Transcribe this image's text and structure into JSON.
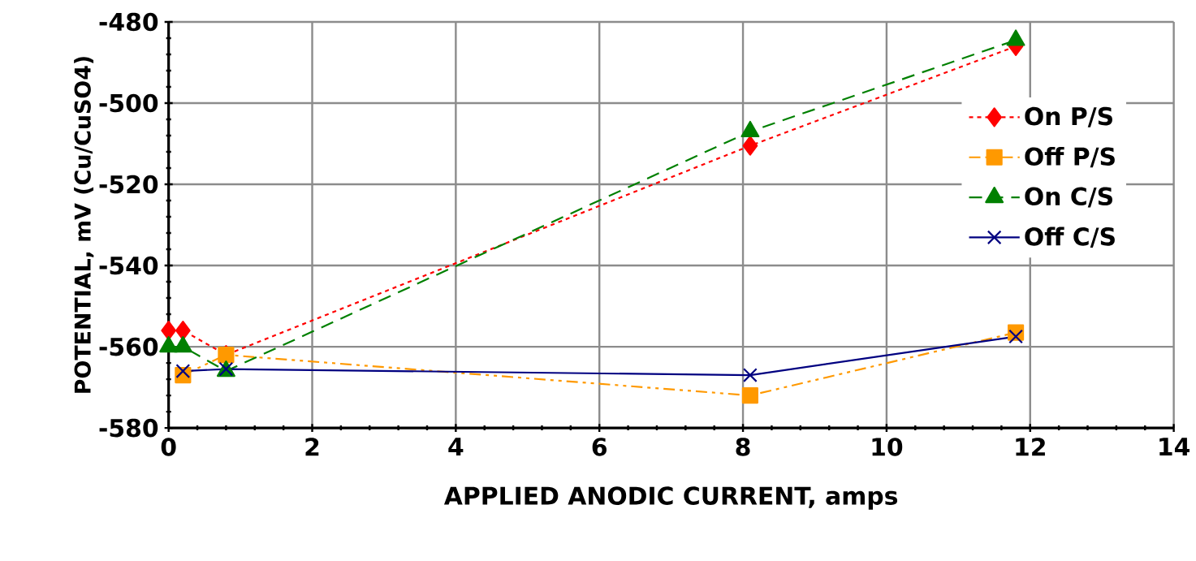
{
  "chart_data": {
    "type": "line",
    "xlabel": "APPLIED ANODIC CURRENT, amps",
    "ylabel": "POTENTIAL, mV (Cu/CuSO4)",
    "xlim": [
      0,
      14
    ],
    "xticks": [
      0,
      2,
      4,
      6,
      8,
      10,
      12,
      14
    ],
    "ylim": [
      -580,
      -480
    ],
    "yticks": [
      -580,
      -560,
      -540,
      -520,
      -500,
      -480
    ],
    "grid": true,
    "legend": "right",
    "series": [
      {
        "name": "On P/S",
        "color": "#ff0000",
        "marker": "diamond",
        "line_style": "dotted",
        "x": [
          0,
          0.2,
          0.8,
          8.1,
          11.8
        ],
        "values": [
          -556,
          -556,
          -562,
          -510.5,
          -486
        ]
      },
      {
        "name": "Off P/S",
        "color": "#ff9900",
        "marker": "square",
        "line_style": "dashdotdot",
        "x": [
          0.2,
          0.8,
          8.1,
          11.8
        ],
        "values": [
          -567,
          -562,
          -572,
          -556.5
        ]
      },
      {
        "name": "On C/S",
        "color": "#008000",
        "marker": "triangle",
        "line_style": "dashed",
        "x": [
          0,
          0.2,
          0.8,
          8.1,
          11.8
        ],
        "values": [
          -560,
          -560,
          -566,
          -507,
          -484.5
        ]
      },
      {
        "name": "Off C/S",
        "color": "#000080",
        "marker": "cross",
        "line_style": "solid",
        "x": [
          0.2,
          0.8,
          8.1,
          11.8
        ],
        "values": [
          -566,
          -565.5,
          -567,
          -557.5
        ]
      }
    ]
  }
}
